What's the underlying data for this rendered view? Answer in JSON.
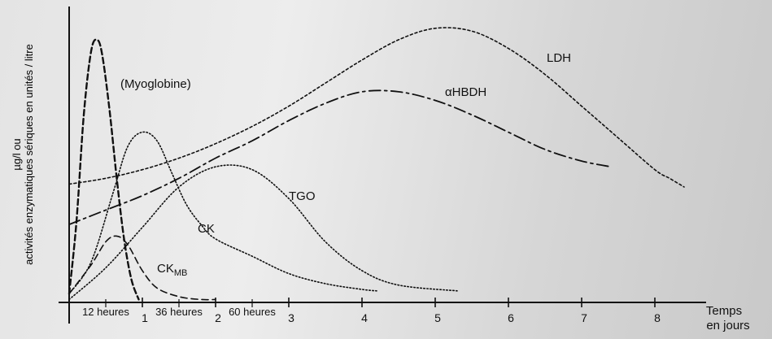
{
  "chart_data": {
    "type": "line",
    "xlabel": [
      "Temps",
      "en jours"
    ],
    "ylabel": [
      "µg/l ou",
      "activités enzymatiques sériques en unités / litre"
    ],
    "x_ticks": [
      {
        "value": 0.5,
        "label": "12 heures"
      },
      {
        "value": 1,
        "label": "1"
      },
      {
        "value": 1.5,
        "label": "36 heures"
      },
      {
        "value": 2,
        "label": "2"
      },
      {
        "value": 2.5,
        "label": "60 heures"
      },
      {
        "value": 3,
        "label": "3"
      },
      {
        "value": 4,
        "label": "4"
      },
      {
        "value": 5,
        "label": "5"
      },
      {
        "value": 6,
        "label": "6"
      },
      {
        "value": 7,
        "label": "7"
      },
      {
        "value": 8,
        "label": "8"
      }
    ],
    "xlim": [
      0,
      9.1
    ],
    "ylim": [
      0,
      100
    ],
    "grid": false,
    "series": [
      {
        "name": "LDH",
        "style": "dotted-dense",
        "x": [
          0,
          0.5,
          1,
          1.5,
          2,
          2.5,
          3,
          3.5,
          4,
          4.5,
          5,
          5.5,
          6,
          6.5,
          7,
          7.5,
          8,
          8.2,
          8.4
        ],
        "y": [
          41,
          43,
          46,
          50,
          55,
          61,
          68,
          76,
          84,
          91,
          95,
          94,
          88,
          79,
          68,
          57,
          46,
          43,
          40
        ]
      },
      {
        "name": "αHBDH",
        "style": "dash-dot",
        "x": [
          0,
          0.5,
          1,
          1.5,
          2,
          2.5,
          3,
          3.5,
          4,
          4.5,
          5,
          5.5,
          6,
          6.5,
          7,
          7.4
        ],
        "y": [
          27,
          32,
          37,
          43,
          50,
          56,
          63,
          69,
          73,
          73,
          70,
          65,
          59,
          53,
          49,
          47
        ]
      },
      {
        "name": "(Myoglobine)",
        "style": "dashed-thick",
        "x": [
          0,
          0.1,
          0.2,
          0.3,
          0.38,
          0.45,
          0.55,
          0.65,
          0.75,
          0.85,
          0.95
        ],
        "y": [
          3,
          28,
          65,
          87,
          91,
          86,
          67,
          43,
          22,
          8,
          1
        ]
      },
      {
        "name": "CK",
        "style": "dotted",
        "x": [
          0,
          0.3,
          0.6,
          0.8,
          1,
          1.2,
          1.4,
          1.6,
          1.8,
          2,
          2.5,
          3,
          3.5,
          4,
          4.2
        ],
        "y": [
          3,
          14,
          38,
          54,
          59,
          56,
          45,
          34,
          27,
          22,
          16,
          10,
          6.5,
          4.5,
          4
        ]
      },
      {
        "name": "TGO",
        "style": "dotted",
        "x": [
          0,
          0.5,
          1,
          1.5,
          2,
          2.5,
          3,
          3.5,
          4,
          4.5,
          5.3
        ],
        "y": [
          1,
          12,
          26,
          40,
          47,
          46,
          36,
          21,
          11,
          6,
          4
        ]
      },
      {
        "name": "CK",
        "sub": "MB",
        "style": "dash",
        "x": [
          0,
          0.3,
          0.5,
          0.65,
          0.8,
          1,
          1.2,
          1.5,
          1.8,
          2
        ],
        "y": [
          3,
          13,
          21,
          23,
          20,
          11,
          5,
          2,
          1,
          1
        ]
      }
    ]
  }
}
